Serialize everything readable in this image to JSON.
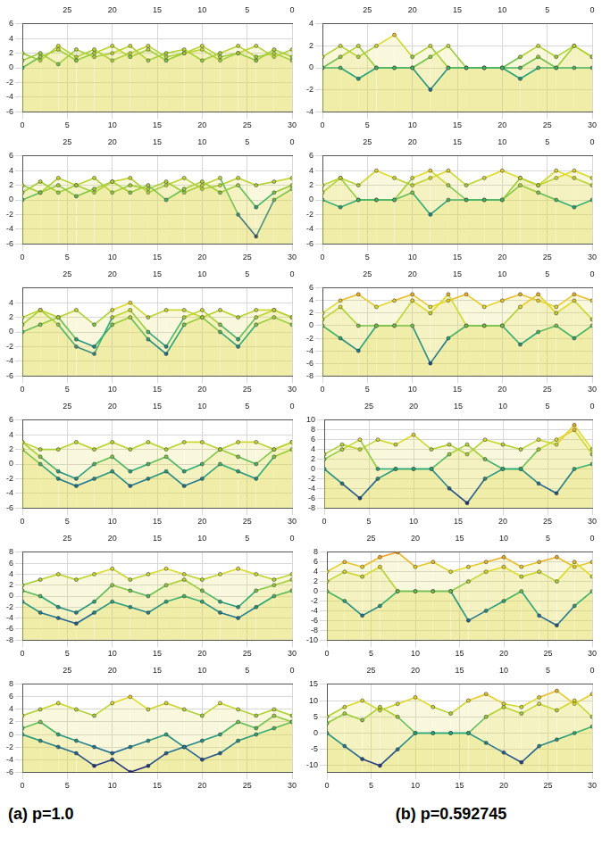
{
  "captions": [
    "(a) p=1.0",
    "(b) p=0.592745"
  ],
  "chart_data": [
    {
      "type": "line",
      "grid": true,
      "x": [
        0,
        2,
        4,
        6,
        8,
        10,
        12,
        14,
        16,
        18,
        20,
        22,
        24,
        26,
        28,
        30
      ],
      "xlim": [
        0,
        30
      ],
      "xticks": [
        0,
        5,
        10,
        15,
        20,
        25,
        30
      ],
      "x2lim": [
        0,
        30
      ],
      "x2ticks": [
        0,
        5,
        10,
        15,
        20,
        25
      ],
      "ylim": [
        -6,
        6
      ],
      "yticks": [
        -6,
        -4,
        -2,
        0,
        2,
        4,
        6
      ],
      "series": [
        {
          "values": [
            0,
            1.5,
            2.5,
            1,
            2,
            3,
            1.5,
            2.5,
            1,
            2,
            3,
            1.5,
            2,
            1,
            2.5,
            1.5
          ]
        },
        {
          "values": [
            1,
            2,
            0.5,
            2.5,
            1.5,
            2,
            3,
            1,
            2,
            2.5,
            1,
            2,
            3,
            1.5,
            2,
            1
          ]
        },
        {
          "values": [
            2,
            1,
            3,
            1.5,
            2.5,
            1,
            2,
            3,
            1.5,
            2,
            2.5,
            1,
            2,
            3,
            1.5,
            2.5
          ]
        }
      ]
    },
    {
      "type": "line",
      "grid": true,
      "x": [
        0,
        2,
        4,
        6,
        8,
        10,
        12,
        14,
        16,
        18,
        20,
        22,
        24,
        26,
        28,
        30
      ],
      "xlim": [
        0,
        30
      ],
      "xticks": [
        0,
        5,
        10,
        15,
        20,
        25,
        30
      ],
      "x2lim": [
        0,
        30
      ],
      "x2ticks": [
        0,
        5,
        10,
        15,
        20,
        25
      ],
      "ylim": [
        -6,
        6
      ],
      "yticks": [
        -6,
        -4,
        -2,
        0,
        2,
        4,
        6
      ],
      "series": [
        {
          "values": [
            0,
            1,
            2,
            0.5,
            1.5,
            2.5,
            1,
            2,
            0,
            1.5,
            2.5,
            1,
            2,
            -1,
            1,
            2
          ]
        },
        {
          "values": [
            1,
            2.5,
            1,
            2,
            3,
            1,
            2,
            1.5,
            2.5,
            1,
            2,
            3,
            -2,
            -5,
            0,
            1.5
          ]
        },
        {
          "values": [
            2,
            1,
            3,
            2,
            1,
            2.5,
            3,
            1,
            2,
            3,
            1.5,
            2,
            3,
            2,
            2.5,
            3
          ]
        }
      ]
    },
    {
      "type": "line",
      "grid": true,
      "x": [
        0,
        2,
        4,
        6,
        8,
        10,
        12,
        14,
        16,
        18,
        20,
        22,
        24,
        26,
        28,
        30
      ],
      "xlim": [
        0,
        30
      ],
      "xticks": [
        0,
        5,
        10,
        15,
        20,
        25,
        30
      ],
      "x2lim": [
        0,
        30
      ],
      "x2ticks": [
        0,
        5,
        10,
        15,
        20,
        25
      ],
      "ylim": [
        -6,
        6
      ],
      "yticks": [
        -6,
        -4,
        -2,
        0,
        2,
        4
      ],
      "series": [
        {
          "values": [
            0,
            1,
            2,
            -1,
            -2,
            1,
            2,
            -1,
            -3,
            1,
            2,
            0,
            -2,
            1,
            2,
            1
          ]
        },
        {
          "values": [
            1,
            3,
            1,
            -2,
            -3,
            2,
            3,
            0,
            -2,
            2,
            3,
            1,
            -1,
            2,
            3,
            2
          ]
        },
        {
          "values": [
            2,
            3,
            2,
            3,
            1,
            3,
            4,
            2,
            3,
            3,
            2,
            3,
            2,
            3,
            3,
            2
          ]
        }
      ]
    },
    {
      "type": "line",
      "grid": true,
      "x": [
        0,
        2,
        4,
        6,
        8,
        10,
        12,
        14,
        16,
        18,
        20,
        22,
        24,
        26,
        28,
        30
      ],
      "xlim": [
        0,
        30
      ],
      "xticks": [
        0,
        5,
        10,
        15,
        20,
        25,
        30
      ],
      "x2lim": [
        0,
        30
      ],
      "x2ticks": [
        0,
        5,
        10,
        15,
        20,
        25
      ],
      "ylim": [
        -6,
        6
      ],
      "yticks": [
        -6,
        -4,
        -2,
        0,
        2,
        4,
        6
      ],
      "series": [
        {
          "values": [
            2,
            0,
            -2,
            -3,
            -2,
            -1,
            -3,
            -2,
            -1,
            -3,
            -2,
            0,
            -1,
            -2,
            1,
            2
          ]
        },
        {
          "values": [
            3,
            1,
            -1,
            -2,
            0,
            1,
            -1,
            0,
            1,
            -1,
            0,
            2,
            1,
            0,
            2,
            3
          ]
        },
        {
          "values": [
            3,
            2,
            2,
            3,
            2,
            3,
            2,
            3,
            2,
            3,
            3,
            2,
            3,
            3,
            2,
            3
          ]
        }
      ]
    },
    {
      "type": "line",
      "grid": true,
      "x": [
        0,
        2,
        4,
        6,
        8,
        10,
        12,
        14,
        16,
        18,
        20,
        22,
        24,
        26,
        28,
        30
      ],
      "xlim": [
        0,
        30
      ],
      "xticks": [
        0,
        5,
        10,
        15,
        20,
        25,
        30
      ],
      "x2lim": [
        0,
        30
      ],
      "x2ticks": [
        0,
        5,
        10,
        15,
        20,
        25
      ],
      "ylim": [
        -8,
        8
      ],
      "yticks": [
        -8,
        -6,
        -4,
        -2,
        0,
        2,
        4,
        6,
        8
      ],
      "series": [
        {
          "values": [
            -1,
            -3,
            -4,
            -5,
            -3,
            -1,
            -2,
            -3,
            -1,
            0,
            -1,
            -3,
            -4,
            -2,
            0,
            1
          ]
        },
        {
          "values": [
            1,
            0,
            -2,
            -3,
            -1,
            2,
            1,
            0,
            2,
            3,
            1,
            -1,
            -2,
            1,
            2,
            3
          ]
        },
        {
          "values": [
            2,
            3,
            4,
            3,
            4,
            5,
            3,
            4,
            5,
            4,
            3,
            4,
            5,
            4,
            3,
            4
          ]
        }
      ]
    },
    {
      "type": "line",
      "grid": true,
      "x": [
        0,
        2,
        4,
        6,
        8,
        10,
        12,
        14,
        16,
        18,
        20,
        22,
        24,
        26,
        28,
        30
      ],
      "xlim": [
        0,
        30
      ],
      "xticks": [
        0,
        5,
        10,
        15,
        20,
        25,
        30
      ],
      "x2lim": [
        0,
        30
      ],
      "x2ticks": [
        0,
        5,
        10,
        15,
        20,
        25
      ],
      "ylim": [
        -6,
        8
      ],
      "yticks": [
        -6,
        -4,
        -2,
        0,
        2,
        4,
        6,
        8
      ],
      "series": [
        {
          "values": [
            0,
            -1,
            -2,
            -3,
            -5,
            -4,
            -6,
            -5,
            -3,
            -2,
            -4,
            -3,
            -1,
            0,
            1,
            2
          ]
        },
        {
          "values": [
            1,
            2,
            0,
            -1,
            -2,
            -3,
            -2,
            -1,
            0,
            -2,
            -1,
            0,
            2,
            1,
            3,
            2
          ]
        },
        {
          "values": [
            3,
            4,
            5,
            4,
            3,
            5,
            6,
            4,
            5,
            4,
            3,
            5,
            4,
            3,
            4,
            3
          ]
        }
      ]
    },
    {
      "type": "line",
      "grid": true,
      "x": [
        0,
        2,
        4,
        6,
        8,
        10,
        12,
        14,
        16,
        18,
        20,
        22,
        24,
        26,
        28,
        30
      ],
      "xlim": [
        0,
        30
      ],
      "xticks": [
        0,
        5,
        10,
        15,
        20,
        25,
        30
      ],
      "x2lim": [
        0,
        30
      ],
      "x2ticks": [
        0,
        5,
        10,
        15,
        20,
        25
      ],
      "ylim": [
        -4,
        4
      ],
      "yticks": [
        -4,
        -2,
        0,
        2,
        4
      ],
      "series": [
        {
          "values": [
            0,
            0,
            -1,
            0,
            0,
            0,
            -2,
            0,
            0,
            0,
            0,
            -1,
            0,
            0,
            0,
            0
          ]
        },
        {
          "values": [
            0,
            1,
            2,
            0,
            0,
            0,
            1,
            2,
            0,
            0,
            0,
            0,
            1,
            0,
            2,
            1
          ]
        },
        {
          "values": [
            1,
            2,
            1,
            2,
            3,
            1,
            2,
            0,
            0,
            0,
            0,
            1,
            2,
            1,
            2,
            1
          ]
        }
      ]
    },
    {
      "type": "line",
      "grid": true,
      "x": [
        0,
        2,
        4,
        6,
        8,
        10,
        12,
        14,
        16,
        18,
        20,
        22,
        24,
        26,
        28,
        30
      ],
      "xlim": [
        0,
        30
      ],
      "xticks": [
        0,
        5,
        10,
        15,
        20,
        25,
        30
      ],
      "x2lim": [
        0,
        30
      ],
      "x2ticks": [
        0,
        5,
        10,
        15,
        20,
        25
      ],
      "ylim": [
        -6,
        6
      ],
      "yticks": [
        -6,
        -4,
        -2,
        0,
        2,
        4,
        6
      ],
      "series": [
        {
          "values": [
            0,
            -1,
            0,
            0,
            0,
            1,
            -2,
            0,
            0,
            0,
            0,
            2,
            1,
            0,
            -1,
            0
          ]
        },
        {
          "values": [
            2,
            3,
            0,
            0,
            0,
            3,
            4,
            2,
            0,
            0,
            0,
            3,
            2,
            4,
            3,
            2
          ]
        },
        {
          "values": [
            1,
            3,
            2,
            4,
            3,
            2,
            3,
            4,
            2,
            3,
            4,
            3,
            2,
            3,
            4,
            3
          ]
        }
      ]
    },
    {
      "type": "line",
      "grid": true,
      "x": [
        0,
        2,
        4,
        6,
        8,
        10,
        12,
        14,
        16,
        18,
        20,
        22,
        24,
        26,
        28,
        30
      ],
      "xlim": [
        0,
        30
      ],
      "xticks": [
        0,
        5,
        10,
        15,
        20,
        25,
        30
      ],
      "x2lim": [
        0,
        30
      ],
      "x2ticks": [
        0,
        5,
        10,
        15,
        20,
        25
      ],
      "ylim": [
        -8,
        6
      ],
      "yticks": [
        -8,
        -6,
        -4,
        -2,
        0,
        2,
        4,
        6
      ],
      "series": [
        {
          "values": [
            0,
            -2,
            -4,
            0,
            0,
            0,
            -6,
            -2,
            0,
            0,
            0,
            -3,
            -1,
            0,
            -2,
            0
          ]
        },
        {
          "values": [
            1,
            3,
            0,
            0,
            0,
            4,
            2,
            5,
            0,
            0,
            0,
            3,
            5,
            2,
            4,
            1
          ]
        },
        {
          "values": [
            2,
            4,
            5,
            3,
            4,
            5,
            3,
            4,
            5,
            3,
            4,
            5,
            4,
            3,
            5,
            4
          ]
        }
      ]
    },
    {
      "type": "line",
      "grid": true,
      "x": [
        0,
        2,
        4,
        6,
        8,
        10,
        12,
        14,
        16,
        18,
        20,
        22,
        24,
        26,
        28,
        30
      ],
      "xlim": [
        0,
        30
      ],
      "xticks": [
        0,
        5,
        10,
        15,
        20,
        25,
        30
      ],
      "x2lim": [
        0,
        30
      ],
      "x2ticks": [
        0,
        5,
        10,
        15,
        20,
        25
      ],
      "ylim": [
        -8,
        10
      ],
      "yticks": [
        -8,
        -6,
        -4,
        -2,
        0,
        2,
        4,
        6,
        8,
        10
      ],
      "series": [
        {
          "values": [
            0,
            -3,
            -6,
            -2,
            0,
            0,
            0,
            -4,
            -7,
            -2,
            0,
            0,
            -3,
            -5,
            0,
            1
          ]
        },
        {
          "values": [
            2,
            4,
            6,
            0,
            0,
            0,
            0,
            3,
            5,
            2,
            0,
            0,
            4,
            6,
            8,
            3
          ]
        },
        {
          "values": [
            3,
            5,
            4,
            6,
            5,
            7,
            4,
            5,
            3,
            6,
            5,
            4,
            6,
            5,
            9,
            4
          ]
        }
      ]
    },
    {
      "type": "line",
      "grid": true,
      "x": [
        0,
        2,
        4,
        6,
        8,
        10,
        12,
        14,
        16,
        18,
        20,
        22,
        24,
        26,
        28,
        30
      ],
      "xlim": [
        0,
        30
      ],
      "xticks": [
        0,
        5,
        10,
        15,
        20,
        25,
        30
      ],
      "x2lim": [
        0,
        30
      ],
      "x2ticks": [
        0,
        5,
        10,
        15,
        20,
        25
      ],
      "ylim": [
        -10,
        8
      ],
      "yticks": [
        -10,
        -8,
        -6,
        -4,
        -2,
        0,
        2,
        4,
        6,
        8
      ],
      "series": [
        {
          "values": [
            0,
            -2,
            -5,
            -3,
            0,
            0,
            0,
            0,
            -6,
            -4,
            -2,
            0,
            -5,
            -7,
            -3,
            0
          ]
        },
        {
          "values": [
            2,
            4,
            3,
            5,
            0,
            0,
            0,
            0,
            2,
            4,
            5,
            3,
            4,
            2,
            6,
            3
          ]
        },
        {
          "values": [
            4,
            6,
            5,
            7,
            8,
            5,
            6,
            4,
            5,
            6,
            7,
            5,
            6,
            7,
            5,
            6
          ]
        }
      ]
    },
    {
      "type": "line",
      "grid": true,
      "x": [
        0,
        2,
        4,
        6,
        8,
        10,
        12,
        14,
        16,
        18,
        20,
        22,
        24,
        26,
        28,
        30
      ],
      "xlim": [
        0,
        30
      ],
      "xticks": [
        0,
        5,
        10,
        15,
        20,
        25,
        30
      ],
      "x2lim": [
        0,
        30
      ],
      "x2ticks": [
        0,
        5,
        10,
        15,
        20,
        25
      ],
      "ylim": [
        -12,
        15
      ],
      "yticks": [
        -10,
        -5,
        0,
        5,
        10,
        15
      ],
      "series": [
        {
          "values": [
            0,
            -4,
            -8,
            -10,
            -5,
            0,
            0,
            0,
            0,
            -3,
            -6,
            -9,
            -4,
            -2,
            0,
            2
          ]
        },
        {
          "values": [
            3,
            6,
            4,
            8,
            5,
            0,
            0,
            0,
            0,
            5,
            8,
            6,
            9,
            7,
            10,
            5
          ]
        },
        {
          "values": [
            5,
            8,
            10,
            7,
            9,
            11,
            8,
            6,
            10,
            12,
            9,
            8,
            11,
            13,
            9,
            12
          ]
        }
      ]
    }
  ]
}
